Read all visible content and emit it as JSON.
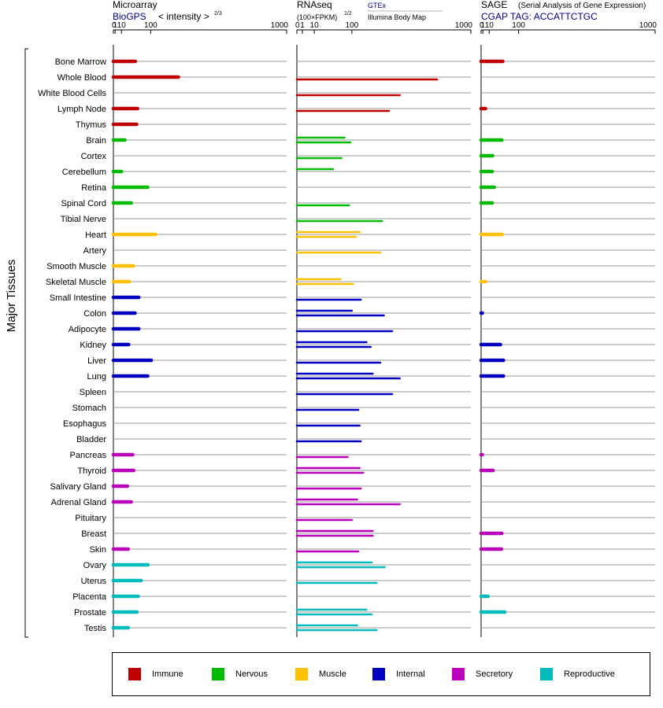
{
  "header": {
    "microarray": {
      "title": "Microarray",
      "source": "BioGPS",
      "scale_label": "< intensity >",
      "scale_exponent": "2/3"
    },
    "rnaseq": {
      "title": "RNAseq",
      "scale_label": "(100×FPKM)",
      "scale_exponent": "1/2",
      "source_a": "GTEx",
      "source_b": "Illumina Body Map"
    },
    "sage": {
      "title": "SAGE",
      "subtitle": "(Serial Analysis of Gene Expression)",
      "source": "CGAP TAG: ACCATTCTGC"
    }
  },
  "axis": {
    "ticks": [
      0,
      1,
      10,
      100,
      1000
    ],
    "tick_labels": [
      "0",
      "1",
      "10",
      "100",
      "1000"
    ]
  },
  "y_axis_label": "Major Tissues",
  "colors": {
    "Immune": "#c00000",
    "Nervous": "#00bb00",
    "Muscle": "#ffc000",
    "Internal": "#0000c0",
    "Secretory": "#bb00bb",
    "Reproductive": "#00bbbb",
    "accent_text": "#000080",
    "grid": "#999999"
  },
  "legend": [
    {
      "label": "Immune",
      "color": "#c00000"
    },
    {
      "label": "Nervous",
      "color": "#00bb00"
    },
    {
      "label": "Muscle",
      "color": "#ffc000"
    },
    {
      "label": "Internal",
      "color": "#0000c0"
    },
    {
      "label": "Secretory",
      "color": "#bb00bb"
    },
    {
      "label": "Reproductive",
      "color": "#00bbbb"
    }
  ],
  "chart_data": [
    {
      "type": "bar",
      "title": "Microarray",
      "xlabel": "< intensity >",
      "scale": "power 2/3",
      "xlim": [
        0,
        1000
      ],
      "categories": [
        "Bone Marrow",
        "Whole Blood",
        "White Blood Cells",
        "Lymph Node",
        "Thymus",
        "Brain",
        "Cortex",
        "Cerebellum",
        "Retina",
        "Spinal Cord",
        "Tibial Nerve",
        "Heart",
        "Artery",
        "Smooth Muscle",
        "Skeletal Muscle",
        "Small Intestine",
        "Colon",
        "Adipocyte",
        "Kidney",
        "Liver",
        "Lung",
        "Spleen",
        "Stomach",
        "Esophagus",
        "Bladder",
        "Pancreas",
        "Thyroid",
        "Salivary Gland",
        "Adrenal Gland",
        "Pituitary",
        "Breast",
        "Skin",
        "Ovary",
        "Uterus",
        "Placenta",
        "Prostate",
        "Testis"
      ],
      "groups": [
        "Immune",
        "Immune",
        "Immune",
        "Immune",
        "Immune",
        "Nervous",
        "Nervous",
        "Nervous",
        "Nervous",
        "Nervous",
        "Nervous",
        "Muscle",
        "Muscle",
        "Muscle",
        "Muscle",
        "Internal",
        "Internal",
        "Internal",
        "Internal",
        "Internal",
        "Internal",
        "Internal",
        "Internal",
        "Internal",
        "Internal",
        "Secretory",
        "Secretory",
        "Secretory",
        "Secretory",
        "Secretory",
        "Secretory",
        "Secretory",
        "Reproductive",
        "Reproductive",
        "Reproductive",
        "Reproductive",
        "Reproductive"
      ],
      "values": [
        45,
        230,
        null,
        52,
        49,
        17,
        null,
        10,
        88,
        33,
        null,
        120,
        null,
        39,
        28,
        56,
        44,
        56,
        26,
        102,
        88,
        null,
        null,
        null,
        null,
        37,
        40,
        23,
        33,
        null,
        null,
        25,
        89,
        64,
        54,
        50,
        25
      ]
    },
    {
      "type": "bar",
      "title": "RNAseq",
      "xlabel": "(100×FPKM)",
      "scale": "power 1/2",
      "xlim": [
        0,
        1000
      ],
      "series_names": [
        "GTEx",
        "Illumina Body Map"
      ],
      "categories": [
        "Bone Marrow",
        "Whole Blood",
        "White Blood Cells",
        "Lymph Node",
        "Thymus",
        "Brain",
        "Cortex",
        "Cerebellum",
        "Retina",
        "Spinal Cord",
        "Tibial Nerve",
        "Heart",
        "Artery",
        "Smooth Muscle",
        "Skeletal Muscle",
        "Small Intestine",
        "Colon",
        "Adipocyte",
        "Kidney",
        "Liver",
        "Lung",
        "Spleen",
        "Stomach",
        "Esophagus",
        "Bladder",
        "Pancreas",
        "Thyroid",
        "Salivary Gland",
        "Adrenal Gland",
        "Pituitary",
        "Breast",
        "Skin",
        "Ovary",
        "Uterus",
        "Placenta",
        "Prostate",
        "Testis"
      ],
      "groups": [
        "Immune",
        "Immune",
        "Immune",
        "Immune",
        "Immune",
        "Nervous",
        "Nervous",
        "Nervous",
        "Nervous",
        "Nervous",
        "Nervous",
        "Muscle",
        "Muscle",
        "Muscle",
        "Muscle",
        "Internal",
        "Internal",
        "Internal",
        "Internal",
        "Internal",
        "Internal",
        "Internal",
        "Internal",
        "Internal",
        "Internal",
        "Secretory",
        "Secretory",
        "Secretory",
        "Secretory",
        "Secretory",
        "Secretory",
        "Secretory",
        "Reproductive",
        "Reproductive",
        "Reproductive",
        "Reproductive",
        "Reproductive"
      ],
      "values_a": [
        null,
        null,
        null,
        null,
        null,
        75,
        null,
        43,
        null,
        null,
        null,
        130,
        null,
        null,
        63,
        null,
        100,
        null,
        160,
        null,
        190,
        null,
        null,
        null,
        null,
        null,
        130,
        null,
        120,
        null,
        190,
        null,
        185,
        null,
        null,
        160,
        120
      ],
      "values_b": [
        null,
        650,
        350,
        280,
        null,
        95,
        65,
        null,
        null,
        90,
        240,
        115,
        230,
        null,
        105,
        135,
        250,
        300,
        180,
        230,
        350,
        300,
        125,
        130,
        135,
        85,
        145,
        135,
        350,
        100,
        190,
        125,
        255,
        210,
        null,
        185,
        210
      ]
    },
    {
      "type": "bar",
      "title": "SAGE",
      "xlabel": "CGAP TAG: ACCATTCTGC",
      "scale": "power 2/3",
      "xlim": [
        0,
        1000
      ],
      "categories": [
        "Bone Marrow",
        "Whole Blood",
        "White Blood Cells",
        "Lymph Node",
        "Thymus",
        "Brain",
        "Cortex",
        "Cerebellum",
        "Retina",
        "Spinal Cord",
        "Tibial Nerve",
        "Heart",
        "Artery",
        "Smooth Muscle",
        "Skeletal Muscle",
        "Small Intestine",
        "Colon",
        "Adipocyte",
        "Kidney",
        "Liver",
        "Lung",
        "Spleen",
        "Stomach",
        "Esophagus",
        "Bladder",
        "Pancreas",
        "Thyroid",
        "Salivary Gland",
        "Adrenal Gland",
        "Pituitary",
        "Breast",
        "Skin",
        "Ovary",
        "Uterus",
        "Placenta",
        "Prostate",
        "Testis"
      ],
      "groups": [
        "Immune",
        "Immune",
        "Immune",
        "Immune",
        "Immune",
        "Nervous",
        "Nervous",
        "Nervous",
        "Nervous",
        "Nervous",
        "Nervous",
        "Muscle",
        "Muscle",
        "Muscle",
        "Muscle",
        "Internal",
        "Internal",
        "Internal",
        "Internal",
        "Internal",
        "Internal",
        "Internal",
        "Internal",
        "Internal",
        "Internal",
        "Secretory",
        "Secretory",
        "Secretory",
        "Secretory",
        "Secretory",
        "Secretory",
        "Secretory",
        "Reproductive",
        "Reproductive",
        "Reproductive",
        "Reproductive",
        "Reproductive"
      ],
      "values": [
        44,
        null,
        null,
        4,
        null,
        41,
        17,
        16,
        21,
        16,
        null,
        42,
        null,
        null,
        4,
        null,
        0.1,
        null,
        37,
        46,
        46,
        null,
        null,
        null,
        null,
        0.1,
        18,
        null,
        null,
        null,
        41,
        40,
        null,
        null,
        8,
        50,
        null
      ]
    }
  ]
}
